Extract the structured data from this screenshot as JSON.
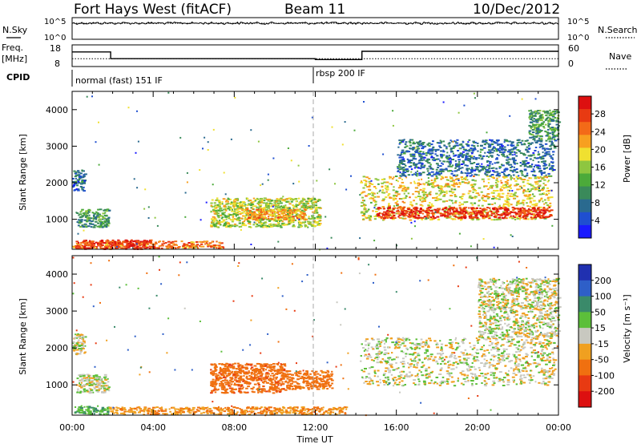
{
  "header": {
    "station": "Fort Hays West (fitACF)",
    "beam": "Beam 11",
    "date": "10/Dec/2012"
  },
  "panels": {
    "nsky": {
      "left_label": "N.Sky",
      "right_label": "N.Search",
      "left_ticks": [
        "10^5",
        "10^0"
      ],
      "right_ticks": [
        "10^5",
        "10^0"
      ]
    },
    "freq": {
      "left_label_1": "Freq.",
      "left_label_2": "[MHz]",
      "left_ticks": [
        "18",
        "8"
      ],
      "right_label": "Nave",
      "right_ticks": [
        "60",
        "0"
      ]
    },
    "cpid": {
      "label": "CPID",
      "mode_1": "normal (fast) 151 IF",
      "mode_2": "rbsp 200 IF"
    },
    "power": {
      "ylabel": "Slant Range [km]",
      "colorbar_label": "Power [dB]",
      "colorbar_ticks": [
        "28",
        "24",
        "20",
        "16",
        "12",
        "8",
        "4"
      ]
    },
    "velocity": {
      "ylabel": "Slant Range [km]",
      "colorbar_label": "Velocity [m s⁻¹]",
      "colorbar_ticks": [
        "200",
        "100",
        "50",
        "15",
        "-15",
        "-50",
        "-100",
        "-200"
      ]
    }
  },
  "xaxis": {
    "label": "Time UT",
    "ticks": [
      "00:00",
      "04:00",
      "08:00",
      "12:00",
      "16:00",
      "20:00",
      "00:00"
    ]
  },
  "colors": {
    "power_scale": [
      "#1a1aff",
      "#1f4fd0",
      "#2a6a8f",
      "#3a8a5a",
      "#4caa3a",
      "#8ec640",
      "#f0e030",
      "#f7a020",
      "#f36a18",
      "#e83a12",
      "#dd1010"
    ],
    "velocity_scale": [
      "#2030b0",
      "#2e5fc8",
      "#3a8a6a",
      "#5cbf3a",
      "#c8c8c0",
      "#f0a020",
      "#f07010",
      "#e83a12",
      "#dd1010"
    ],
    "ground_scatter": "#b8b8b0"
  },
  "chart_data": [
    {
      "type": "line",
      "title": "N.Sky / N.Search",
      "x_unit": "UT hours",
      "xlim": [
        0,
        24
      ],
      "y_scale": "log",
      "ylim": [
        1,
        100000
      ],
      "series": [
        {
          "name": "N.Sky",
          "x": [
            0,
            4,
            8,
            12,
            16,
            20,
            24
          ],
          "y": [
            30000,
            30000,
            30000,
            30000,
            30000,
            30000,
            30000
          ]
        },
        {
          "name": "N.Search",
          "x": [
            0,
            4,
            8,
            12,
            16,
            20,
            24
          ],
          "y": [
            40000,
            40000,
            40000,
            40000,
            40000,
            40000,
            40000
          ]
        }
      ]
    },
    {
      "type": "line",
      "title": "Freq / Nave",
      "xlim": [
        0,
        24
      ],
      "ylim": [
        8,
        18
      ],
      "y2lim": [
        0,
        60
      ],
      "series": [
        {
          "name": "Freq. [MHz]",
          "x": [
            0,
            1.9,
            1.9,
            12,
            12,
            14.3,
            14.3,
            24
          ],
          "y": [
            15.8,
            15.8,
            12,
            12,
            11.5,
            11.5,
            16.2,
            16.2
          ]
        },
        {
          "name": "Nave",
          "x": [
            0,
            24
          ],
          "y": [
            24,
            24
          ]
        }
      ]
    },
    {
      "type": "table",
      "title": "CPID",
      "rows": [
        {
          "start_ut": 0,
          "end_ut": 12,
          "mode": "normal (fast) 151 IF"
        },
        {
          "start_ut": 12,
          "end_ut": 24,
          "mode": "rbsp 200 IF"
        }
      ]
    },
    {
      "type": "heatmap",
      "title": "Power",
      "xlabel": "Time UT",
      "ylabel": "Slant Range [km]",
      "xlim": [
        0,
        24
      ],
      "ylim": [
        180,
        4500
      ],
      "clabel": "Power [dB]",
      "clim": [
        0,
        30
      ],
      "regions": [
        {
          "t0": 0,
          "t1": 7.5,
          "r0": 220,
          "r1": 420,
          "value": 24
        },
        {
          "t0": 0.5,
          "t1": 4,
          "r0": 200,
          "r1": 450,
          "value": 28
        },
        {
          "t0": 0.2,
          "t1": 1.8,
          "r0": 800,
          "r1": 1300,
          "value": 10
        },
        {
          "t0": 0,
          "t1": 0.6,
          "r0": 1800,
          "r1": 2400,
          "value": 6
        },
        {
          "t0": 6.8,
          "t1": 12.2,
          "r0": 800,
          "r1": 1600,
          "value": 16
        },
        {
          "t0": 8.5,
          "t1": 11.5,
          "r0": 1000,
          "r1": 1300,
          "value": 22
        },
        {
          "t0": 14.2,
          "t1": 23.6,
          "r0": 1000,
          "r1": 2200,
          "value": 18
        },
        {
          "t0": 15,
          "t1": 23.6,
          "r0": 1050,
          "r1": 1350,
          "value": 28
        },
        {
          "t0": 16,
          "t1": 23.8,
          "r0": 2200,
          "r1": 3200,
          "value": 6
        },
        {
          "t0": 22.5,
          "t1": 24,
          "r0": 3200,
          "r1": 4000,
          "value": 10
        }
      ]
    },
    {
      "type": "heatmap",
      "title": "Velocity",
      "xlabel": "Time UT",
      "ylabel": "Slant Range [km]",
      "xlim": [
        0,
        24
      ],
      "ylim": [
        180,
        4500
      ],
      "clabel": "Velocity [m s⁻¹]",
      "clim": [
        -200,
        200
      ],
      "regions": [
        {
          "t0": 0,
          "t1": 1.8,
          "r0": 220,
          "r1": 450,
          "value": 30
        },
        {
          "t0": 1.8,
          "t1": 13.5,
          "r0": 220,
          "r1": 420,
          "value": -30
        },
        {
          "t0": 0.2,
          "t1": 1.8,
          "r0": 800,
          "r1": 1300,
          "value": 0
        },
        {
          "t0": 0,
          "t1": 0.6,
          "r0": 1800,
          "r1": 2400,
          "value": 0
        },
        {
          "t0": 6.8,
          "t1": 10.5,
          "r0": 800,
          "r1": 1600,
          "value": -60
        },
        {
          "t0": 10.5,
          "t1": 12.8,
          "r0": 900,
          "r1": 1400,
          "value": -50
        },
        {
          "t0": 14.2,
          "t1": 23.8,
          "r0": 1000,
          "r1": 2300,
          "value": 0
        },
        {
          "t0": 20,
          "t1": 24,
          "r0": 2300,
          "r1": 3900,
          "value": 0
        }
      ]
    }
  ]
}
